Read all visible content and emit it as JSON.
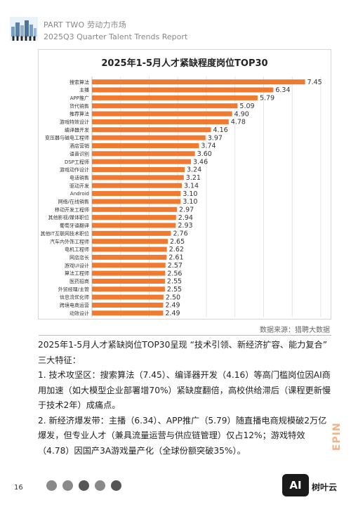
{
  "header": {
    "line1": "PART TWO 劳动力市场",
    "line2": "2025Q3 Quarter Talent Trends Report"
  },
  "chart_data": {
    "type": "bar",
    "orientation": "horizontal",
    "title": "2025年1-5月人才紧缺程度岗位TOP30",
    "categories": [
      "搜索算法",
      "主播",
      "APP推广",
      "货代销售",
      "推荐算法",
      "游戏特效设计",
      "编译器开发",
      "变压器与磁电工程师",
      "酒店营销",
      "语音识别",
      "DSP工程师",
      "游戏动作设计",
      "电话销售",
      "驱动开发",
      "Android",
      "网络/在线销售",
      "移动开发工程师",
      "其他影视/媒体职位",
      "葡萄牙语翻译",
      "其他IT互联网技术职位",
      "汽车内外饰工程师",
      "电机工程师",
      "网店店长",
      "游戏UI设计",
      "算法工程师",
      "医药招商",
      "外贸经理/主管",
      "信息流优化师",
      "跨境电商运营",
      "动效设计"
    ],
    "values": [
      7.45,
      6.34,
      5.79,
      5.09,
      4.9,
      4.78,
      4.16,
      3.97,
      3.74,
      3.6,
      3.46,
      3.24,
      3.21,
      3.14,
      3.1,
      3.1,
      2.97,
      2.94,
      2.93,
      2.76,
      2.65,
      2.62,
      2.61,
      2.57,
      2.56,
      2.55,
      2.55,
      2.5,
      2.49,
      2.49
    ],
    "value_labels": [
      "7.45",
      "6.34",
      "5.79",
      "5.09",
      "4.90",
      "4.78",
      "4.16",
      "3.97",
      "3.74",
      "3.60",
      "3.46",
      "3.24",
      "3.21",
      "3.14",
      "3.10",
      "3.10",
      "2.97",
      "2.94",
      "2.93",
      "2.76",
      "2.65",
      "2.62",
      "2.61",
      "2.57",
      "2.56",
      "2.55",
      "2.55",
      "2.50",
      "2.49",
      "2.49"
    ],
    "xlim": [
      0,
      8
    ],
    "xticks": [
      "0.00",
      "1.00",
      "2.00",
      "3.00",
      "4.00",
      "5.00",
      "6.00",
      "7.00",
      "8.00"
    ],
    "grid": true,
    "bar_color": "#f07a2f"
  },
  "source": "数据来源：猎聘大数据",
  "summary": {
    "intro": "2025年1-5月人才紧缺岗位TOP30呈现 “技术引领、新经济扩容、能力复合” 三大特征：",
    "point1": "1. 技术攻坚区：搜索算法（7.45）、编译器开发（4.16）等高门槛岗位因AI商用加速（如大模型企业部署增70%）紧缺度翻倍，高校供给滞后（课程更新慢于技术2年）成痛点。",
    "point2": "2. 新经济爆发带：主播（6.34）、APP推广（5.79）随直播电商规模破2万亿爆发，但专业人才（兼具流量运营与供应链管理）仅占12%；游戏特效（4.78）因国产3A游戏量产化（全球份额突破35%）。"
  },
  "side_brand": "EPIN",
  "footer": {
    "page_number": "16",
    "badge": "AI",
    "brand": "树叶云"
  }
}
